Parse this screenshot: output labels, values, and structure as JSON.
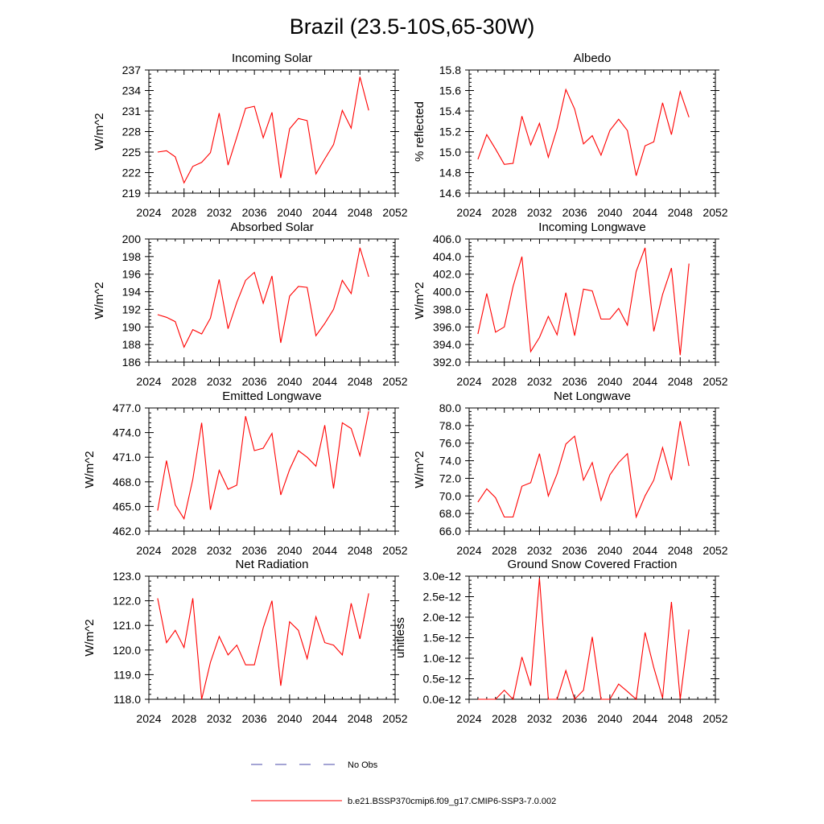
{
  "page_title": "Brazil (23.5-10S,65-30W)",
  "colors": {
    "model": "#ff0000",
    "obs": "#4a4aa8",
    "axis": "#000000"
  },
  "legend": [
    {
      "name": "obs",
      "label": "No Obs",
      "style": "dashed"
    },
    {
      "name": "model",
      "label": "b.e21.BSSP370cmip6.f09_g17.CMIP6-SSP3-7.0.002",
      "style": "solid"
    }
  ],
  "chart_data": [
    {
      "type": "line",
      "title": "Incoming Solar",
      "xlabel": "",
      "ylabel": "W/m^2",
      "xlim": [
        2024,
        2052
      ],
      "ylim": [
        219,
        237
      ],
      "xticks": [
        2024,
        2028,
        2032,
        2036,
        2040,
        2044,
        2048,
        2052
      ],
      "xtick_labels": [
        "2024",
        "2028",
        "2032",
        "2036",
        "2040",
        "2044",
        "2048",
        "2052"
      ],
      "yticks": [
        219,
        222,
        225,
        228,
        231,
        234,
        237
      ],
      "ytick_labels": [
        "219",
        "222",
        "225",
        "228",
        "231",
        "234",
        "237"
      ],
      "series": [
        {
          "name": "b.e21.BSSP370cmip6.f09_g17.CMIP6-SSP3-7.0.002",
          "x": [
            2025,
            2026,
            2027,
            2028,
            2029,
            2030,
            2031,
            2032,
            2033,
            2034,
            2035,
            2036,
            2037,
            2038,
            2039,
            2040,
            2041,
            2042,
            2043,
            2044,
            2045,
            2046,
            2047,
            2048,
            2049
          ],
          "y": [
            225.0,
            225.2,
            224.3,
            220.5,
            222.9,
            223.5,
            224.9,
            230.7,
            223.1,
            227.2,
            231.4,
            231.7,
            227.1,
            230.8,
            221.2,
            228.4,
            229.9,
            229.6,
            221.8,
            224.0,
            226.1,
            231.1,
            228.5,
            236.0,
            231.1
          ]
        }
      ]
    },
    {
      "type": "line",
      "title": "Albedo",
      "xlabel": "",
      "ylabel": "% reflected",
      "xlim": [
        2024,
        2052
      ],
      "ylim": [
        14.6,
        15.8
      ],
      "xticks": [
        2024,
        2028,
        2032,
        2036,
        2040,
        2044,
        2048,
        2052
      ],
      "xtick_labels": [
        "2024",
        "2028",
        "2032",
        "2036",
        "2040",
        "2044",
        "2048",
        "2052"
      ],
      "yticks": [
        14.6,
        14.8,
        15.0,
        15.2,
        15.4,
        15.6,
        15.8
      ],
      "ytick_labels": [
        "14.6",
        "14.8",
        "15.0",
        "15.2",
        "15.4",
        "15.6",
        "15.8"
      ],
      "series": [
        {
          "name": "b.e21.BSSP370cmip6.f09_g17.CMIP6-SSP3-7.0.002",
          "x": [
            2025,
            2026,
            2027,
            2028,
            2029,
            2030,
            2031,
            2032,
            2033,
            2034,
            2035,
            2036,
            2037,
            2038,
            2039,
            2040,
            2041,
            2042,
            2043,
            2044,
            2045,
            2046,
            2047,
            2048,
            2049
          ],
          "y": [
            14.93,
            15.17,
            15.03,
            14.88,
            14.89,
            15.35,
            15.07,
            15.28,
            14.95,
            15.23,
            15.61,
            15.42,
            15.08,
            15.16,
            14.97,
            15.21,
            15.32,
            15.21,
            14.77,
            15.06,
            15.1,
            15.48,
            15.17,
            15.59,
            15.34
          ]
        }
      ]
    },
    {
      "type": "line",
      "title": "Absorbed Solar",
      "xlabel": "",
      "ylabel": "W/m^2",
      "xlim": [
        2024,
        2052
      ],
      "ylim": [
        186,
        200
      ],
      "xticks": [
        2024,
        2028,
        2032,
        2036,
        2040,
        2044,
        2048,
        2052
      ],
      "xtick_labels": [
        "2024",
        "2028",
        "2032",
        "2036",
        "2040",
        "2044",
        "2048",
        "2052"
      ],
      "yticks": [
        186,
        188,
        190,
        192,
        194,
        196,
        198,
        200
      ],
      "ytick_labels": [
        "186",
        "188",
        "190",
        "192",
        "194",
        "196",
        "198",
        "200"
      ],
      "series": [
        {
          "name": "b.e21.BSSP370cmip6.f09_g17.CMIP6-SSP3-7.0.002",
          "x": [
            2025,
            2026,
            2027,
            2028,
            2029,
            2030,
            2031,
            2032,
            2033,
            2034,
            2035,
            2036,
            2037,
            2038,
            2039,
            2040,
            2041,
            2042,
            2043,
            2044,
            2045,
            2046,
            2047,
            2048,
            2049
          ],
          "y": [
            191.4,
            191.1,
            190.6,
            187.7,
            189.7,
            189.2,
            191.0,
            195.4,
            189.8,
            192.8,
            195.3,
            196.2,
            192.7,
            195.8,
            188.2,
            193.5,
            194.6,
            194.5,
            189.0,
            190.4,
            192.0,
            195.3,
            193.8,
            199.0,
            195.7
          ]
        }
      ]
    },
    {
      "type": "line",
      "title": "Incoming Longwave",
      "xlabel": "",
      "ylabel": "W/m^2",
      "xlim": [
        2024,
        2052
      ],
      "ylim": [
        392,
        406
      ],
      "xticks": [
        2024,
        2028,
        2032,
        2036,
        2040,
        2044,
        2048,
        2052
      ],
      "xtick_labels": [
        "2024",
        "2028",
        "2032",
        "2036",
        "2040",
        "2044",
        "2048",
        "2052"
      ],
      "yticks": [
        392,
        394,
        396,
        398,
        400,
        402,
        404,
        406
      ],
      "ytick_labels": [
        "392.0",
        "394.0",
        "396.0",
        "398.0",
        "400.0",
        "402.0",
        "404.0",
        "406.0"
      ],
      "series": [
        {
          "name": "b.e21.BSSP370cmip6.f09_g17.CMIP6-SSP3-7.0.002",
          "x": [
            2025,
            2026,
            2027,
            2028,
            2029,
            2030,
            2031,
            2032,
            2033,
            2034,
            2035,
            2036,
            2037,
            2038,
            2039,
            2040,
            2041,
            2042,
            2043,
            2044,
            2045,
            2046,
            2047,
            2048,
            2049
          ],
          "y": [
            395.2,
            399.8,
            395.4,
            396.0,
            400.6,
            404.0,
            393.2,
            394.8,
            397.2,
            395.1,
            399.9,
            395.0,
            400.3,
            400.1,
            396.9,
            396.9,
            398.1,
            396.2,
            402.3,
            405.0,
            395.5,
            399.7,
            402.7,
            392.8,
            403.2
          ]
        }
      ]
    },
    {
      "type": "line",
      "title": "Emitted Longwave",
      "xlabel": "",
      "ylabel": "W/m^2",
      "xlim": [
        2024,
        2052
      ],
      "ylim": [
        462,
        477
      ],
      "xticks": [
        2024,
        2028,
        2032,
        2036,
        2040,
        2044,
        2048,
        2052
      ],
      "xtick_labels": [
        "2024",
        "2028",
        "2032",
        "2036",
        "2040",
        "2044",
        "2048",
        "2052"
      ],
      "yticks": [
        462,
        465,
        468,
        471,
        474,
        477
      ],
      "ytick_labels": [
        "462.0",
        "465.0",
        "468.0",
        "471.0",
        "474.0",
        "477.0"
      ],
      "series": [
        {
          "name": "b.e21.BSSP370cmip6.f09_g17.CMIP6-SSP3-7.0.002",
          "x": [
            2025,
            2026,
            2027,
            2028,
            2029,
            2030,
            2031,
            2032,
            2033,
            2034,
            2035,
            2036,
            2037,
            2038,
            2039,
            2040,
            2041,
            2042,
            2043,
            2044,
            2045,
            2046,
            2047,
            2048,
            2049
          ],
          "y": [
            464.5,
            470.6,
            465.2,
            463.5,
            468.3,
            475.2,
            464.6,
            469.4,
            467.1,
            467.6,
            476.0,
            471.8,
            472.1,
            473.9,
            466.4,
            469.5,
            471.8,
            471.0,
            469.9,
            474.9,
            467.2,
            475.2,
            474.5,
            471.2,
            476.6
          ]
        }
      ]
    },
    {
      "type": "line",
      "title": "Net Longwave",
      "xlabel": "",
      "ylabel": "W/m^2",
      "xlim": [
        2024,
        2052
      ],
      "ylim": [
        66,
        80
      ],
      "xticks": [
        2024,
        2028,
        2032,
        2036,
        2040,
        2044,
        2048,
        2052
      ],
      "xtick_labels": [
        "2024",
        "2028",
        "2032",
        "2036",
        "2040",
        "2044",
        "2048",
        "2052"
      ],
      "yticks": [
        66,
        68,
        70,
        72,
        74,
        76,
        78,
        80
      ],
      "ytick_labels": [
        "66.0",
        "68.0",
        "70.0",
        "72.0",
        "74.0",
        "76.0",
        "78.0",
        "80.0"
      ],
      "series": [
        {
          "name": "b.e21.BSSP370cmip6.f09_g17.CMIP6-SSP3-7.0.002",
          "x": [
            2025,
            2026,
            2027,
            2028,
            2029,
            2030,
            2031,
            2032,
            2033,
            2034,
            2035,
            2036,
            2037,
            2038,
            2039,
            2040,
            2041,
            2042,
            2043,
            2044,
            2045,
            2046,
            2047,
            2048,
            2049
          ],
          "y": [
            69.3,
            70.8,
            69.8,
            67.6,
            67.6,
            71.1,
            71.5,
            74.8,
            70.0,
            72.5,
            75.9,
            76.8,
            71.8,
            73.8,
            69.5,
            72.4,
            73.8,
            74.8,
            67.6,
            70.0,
            71.8,
            75.5,
            71.8,
            78.5,
            73.4
          ]
        }
      ]
    },
    {
      "type": "line",
      "title": "Net Radiation",
      "xlabel": "",
      "ylabel": "W/m^2",
      "xlim": [
        2024,
        2052
      ],
      "ylim": [
        118,
        123
      ],
      "xticks": [
        2024,
        2028,
        2032,
        2036,
        2040,
        2044,
        2048,
        2052
      ],
      "xtick_labels": [
        "2024",
        "2028",
        "2032",
        "2036",
        "2040",
        "2044",
        "2048",
        "2052"
      ],
      "yticks": [
        118,
        119,
        120,
        121,
        122,
        123
      ],
      "ytick_labels": [
        "118.0",
        "119.0",
        "120.0",
        "121.0",
        "122.0",
        "123.0"
      ],
      "series": [
        {
          "name": "b.e21.BSSP370cmip6.f09_g17.CMIP6-SSP3-7.0.002",
          "x": [
            2025,
            2026,
            2027,
            2028,
            2029,
            2030,
            2031,
            2032,
            2033,
            2034,
            2035,
            2036,
            2037,
            2038,
            2039,
            2040,
            2041,
            2042,
            2043,
            2044,
            2045,
            2046,
            2047,
            2048,
            2049
          ],
          "y": [
            122.1,
            120.3,
            120.8,
            120.1,
            122.1,
            118.0,
            119.5,
            120.55,
            119.8,
            120.2,
            119.4,
            119.4,
            120.9,
            122.0,
            118.55,
            121.15,
            120.8,
            119.65,
            121.35,
            120.3,
            120.2,
            119.8,
            121.9,
            120.45,
            122.3
          ]
        }
      ]
    },
    {
      "type": "line",
      "title": "Ground Snow Covered Fraction",
      "xlabel": "",
      "ylabel": "unitless",
      "xlim": [
        2024,
        2052
      ],
      "ylim": [
        0,
        3e-12
      ],
      "xticks": [
        2024,
        2028,
        2032,
        2036,
        2040,
        2044,
        2048,
        2052
      ],
      "xtick_labels": [
        "2024",
        "2028",
        "2032",
        "2036",
        "2040",
        "2044",
        "2048",
        "2052"
      ],
      "yticks": [
        0,
        5e-13,
        1e-12,
        1.5e-12,
        2e-12,
        2.5e-12,
        3e-12
      ],
      "ytick_labels": [
        "0.0e-12",
        "0.5e-12",
        "1.0e-12",
        "1.5e-12",
        "2.0e-12",
        "2.5e-12",
        "3.0e-12"
      ],
      "series": [
        {
          "name": "b.e21.BSSP370cmip6.f09_g17.CMIP6-SSP3-7.0.002",
          "x": [
            2025,
            2026,
            2027,
            2028,
            2029,
            2030,
            2031,
            2032,
            2033,
            2034,
            2035,
            2036,
            2037,
            2038,
            2039,
            2040,
            2041,
            2042,
            2043,
            2044,
            2045,
            2046,
            2047,
            2048,
            2049
          ],
          "y": [
            0,
            0,
            0,
            2.2e-13,
            0,
            1.03e-12,
            3.3e-13,
            2.95e-12,
            0,
            0,
            7e-13,
            0,
            2.2e-13,
            1.52e-12,
            0,
            0,
            3.7e-13,
            1.9e-13,
            0,
            1.63e-12,
            7.7e-13,
            3e-14,
            2.37e-12,
            0,
            1.7e-12
          ]
        }
      ]
    }
  ]
}
